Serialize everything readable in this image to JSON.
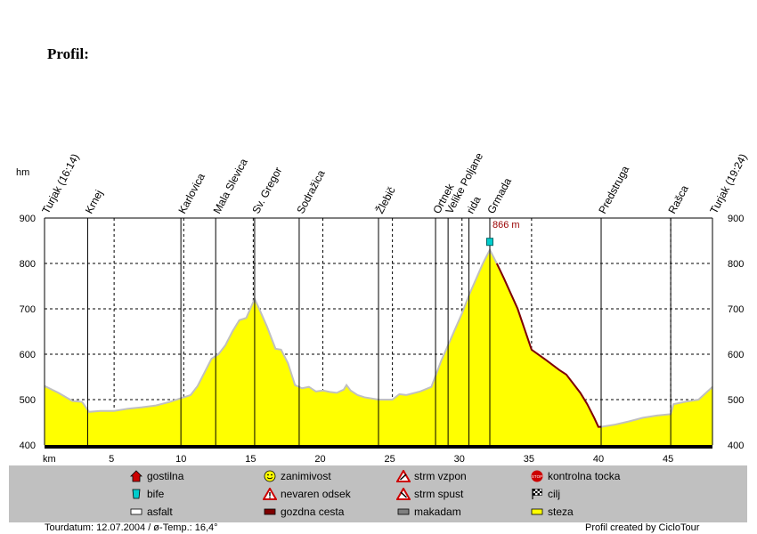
{
  "title": "Profil:",
  "chart_data": {
    "type": "area",
    "ylabel": "hm",
    "xlabel": "km",
    "xlim": [
      0,
      48
    ],
    "ylim": [
      400,
      900
    ],
    "x_ticks": [
      5,
      10,
      15,
      20,
      25,
      30,
      35,
      40,
      45
    ],
    "y_ticks": [
      400,
      500,
      600,
      700,
      800,
      900
    ],
    "grid": true,
    "fill_color": "#ffff00",
    "line_color": "#c0c0c0",
    "steep_color": "#800000",
    "max_label": "866 m",
    "max_point": {
      "x": 32.0,
      "y": 830
    },
    "profile": [
      {
        "x": 0,
        "y": 530
      },
      {
        "x": 1,
        "y": 515
      },
      {
        "x": 2,
        "y": 497
      },
      {
        "x": 2.7,
        "y": 495
      },
      {
        "x": 3.2,
        "y": 473
      },
      {
        "x": 4,
        "y": 475
      },
      {
        "x": 5,
        "y": 475
      },
      {
        "x": 6,
        "y": 480
      },
      {
        "x": 7,
        "y": 483
      },
      {
        "x": 8,
        "y": 487
      },
      {
        "x": 9,
        "y": 495
      },
      {
        "x": 10,
        "y": 505
      },
      {
        "x": 10.5,
        "y": 510
      },
      {
        "x": 11,
        "y": 530
      },
      {
        "x": 11.5,
        "y": 560
      },
      {
        "x": 12,
        "y": 590
      },
      {
        "x": 12.5,
        "y": 600
      },
      {
        "x": 13,
        "y": 620
      },
      {
        "x": 13.5,
        "y": 650
      },
      {
        "x": 14,
        "y": 675
      },
      {
        "x": 14.5,
        "y": 680
      },
      {
        "x": 15.1,
        "y": 722
      },
      {
        "x": 15.5,
        "y": 695
      },
      {
        "x": 16,
        "y": 660
      },
      {
        "x": 16.6,
        "y": 612
      },
      {
        "x": 17,
        "y": 610
      },
      {
        "x": 17.5,
        "y": 580
      },
      {
        "x": 18,
        "y": 532
      },
      {
        "x": 18.5,
        "y": 525
      },
      {
        "x": 19,
        "y": 528
      },
      {
        "x": 19.5,
        "y": 518
      },
      {
        "x": 20,
        "y": 520
      },
      {
        "x": 20.5,
        "y": 517
      },
      {
        "x": 21,
        "y": 515
      },
      {
        "x": 21.5,
        "y": 522
      },
      {
        "x": 21.7,
        "y": 532
      },
      {
        "x": 22,
        "y": 520
      },
      {
        "x": 22.5,
        "y": 510
      },
      {
        "x": 23,
        "y": 505
      },
      {
        "x": 24,
        "y": 500
      },
      {
        "x": 25,
        "y": 500
      },
      {
        "x": 25.5,
        "y": 512
      },
      {
        "x": 26,
        "y": 510
      },
      {
        "x": 27,
        "y": 518
      },
      {
        "x": 27.8,
        "y": 528
      },
      {
        "x": 28.5,
        "y": 585
      },
      {
        "x": 29,
        "y": 620
      },
      {
        "x": 29.5,
        "y": 655
      },
      {
        "x": 30,
        "y": 690
      },
      {
        "x": 30.5,
        "y": 730
      },
      {
        "x": 31,
        "y": 765
      },
      {
        "x": 31.5,
        "y": 800
      },
      {
        "x": 32.0,
        "y": 830
      },
      {
        "x": 32.5,
        "y": 800
      },
      {
        "x": 33,
        "y": 768
      },
      {
        "x": 34,
        "y": 700
      },
      {
        "x": 35,
        "y": 610
      },
      {
        "x": 36,
        "y": 588
      },
      {
        "x": 37,
        "y": 565
      },
      {
        "x": 37.5,
        "y": 555
      },
      {
        "x": 38,
        "y": 535
      },
      {
        "x": 38.5,
        "y": 515
      },
      {
        "x": 39,
        "y": 490
      },
      {
        "x": 39.5,
        "y": 460
      },
      {
        "x": 39.8,
        "y": 440
      },
      {
        "x": 40,
        "y": 440
      },
      {
        "x": 41,
        "y": 445
      },
      {
        "x": 42,
        "y": 452
      },
      {
        "x": 43,
        "y": 460
      },
      {
        "x": 44,
        "y": 465
      },
      {
        "x": 45,
        "y": 468
      },
      {
        "x": 45.2,
        "y": 490
      },
      {
        "x": 46,
        "y": 495
      },
      {
        "x": 47,
        "y": 500
      },
      {
        "x": 48,
        "y": 528
      }
    ],
    "steep_segment": {
      "from": 32.5,
      "to": 40
    },
    "waypoints": [
      {
        "label": "Turjak (16:14)",
        "x": 0
      },
      {
        "label": "Krnej",
        "x": 3.1
      },
      {
        "label": "Karlovica",
        "x": 9.8
      },
      {
        "label": "Mala Slevica",
        "x": 12.3
      },
      {
        "label": "Sv. Gregor",
        "x": 15.1
      },
      {
        "label": "Sodražica",
        "x": 18.3
      },
      {
        "label": "Žlebič",
        "x": 24
      },
      {
        "label": "Ortnek",
        "x": 28.1
      },
      {
        "label": "Velike Poljane",
        "x": 29
      },
      {
        "label": "rida",
        "x": 30.5
      },
      {
        "label": "Grmada",
        "x": 32.0
      },
      {
        "label": "Predstruga",
        "x": 40
      },
      {
        "label": "Rašca",
        "x": 45
      },
      {
        "label": "Turjak (19:24)",
        "x": 48
      }
    ]
  },
  "legend": [
    {
      "label": "gostilna",
      "icon": "house-icon",
      "color": "#cc0000"
    },
    {
      "label": "zanimivost",
      "icon": "smiley-icon",
      "color": "#ffff00"
    },
    {
      "label": "strm vzpon",
      "icon": "warning-up-icon",
      "color": "#cc0000"
    },
    {
      "label": "kontrolna tocka",
      "icon": "stop-icon",
      "color": "#cc0000"
    },
    {
      "label": "bife",
      "icon": "cup-icon",
      "color": "#00cccc"
    },
    {
      "label": "nevaren odsek",
      "icon": "warning-icon",
      "color": "#cc0000"
    },
    {
      "label": "strm spust",
      "icon": "warning-down-icon",
      "color": "#cc0000"
    },
    {
      "label": "cilj",
      "icon": "finish-flag-icon",
      "color": "#000000"
    },
    {
      "label": "asfalt",
      "icon": "asphalt-swatch-icon",
      "color": "#ffffff"
    },
    {
      "label": "gozdna cesta",
      "icon": "forest-road-swatch-icon",
      "color": "#800000"
    },
    {
      "label": "makadam",
      "icon": "gravel-swatch-icon",
      "color": "#808080"
    },
    {
      "label": "steza",
      "icon": "trail-swatch-icon",
      "color": "#ffff00"
    }
  ],
  "footer": {
    "tour_info": "Tourdatum: 12.07.2004  /  ø-Temp.: 16,4°",
    "credit": "Profil created by CicloTour"
  }
}
